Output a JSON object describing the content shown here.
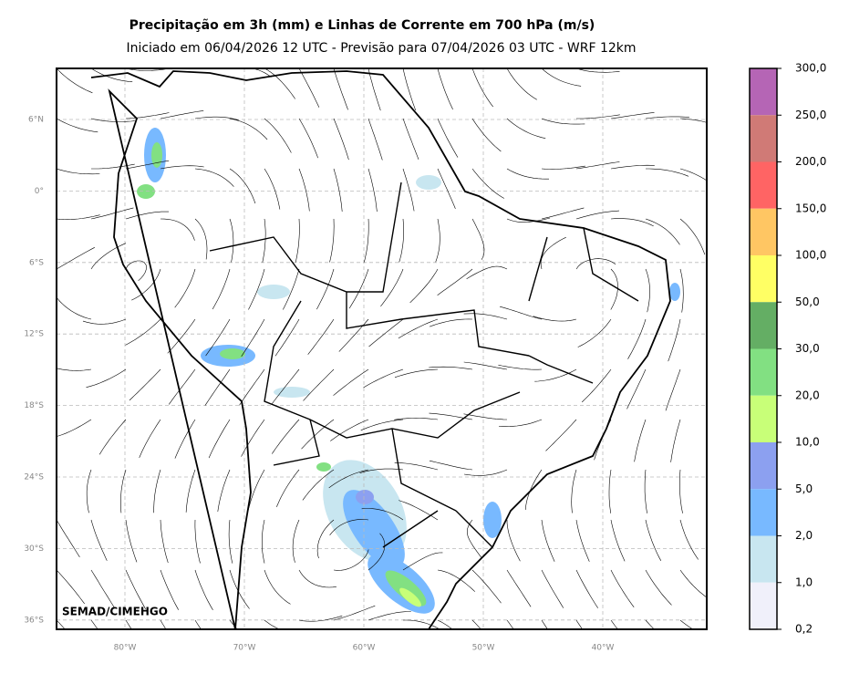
{
  "header": {
    "title": "Precipitação em 3h (mm) e Linhas de Corrente em 700 hPa (m/s)",
    "subtitle": "Iniciado em 06/04/2026 12 UTC - Previsão para 07/04/2026 03 UTC - WRF 12km"
  },
  "map": {
    "lat_labels": [
      "6°N",
      "0°",
      "6°S",
      "12°S",
      "18°S",
      "24°S",
      "30°S",
      "36°S"
    ],
    "lon_labels": [
      "80°W",
      "70°W",
      "60°W",
      "50°W",
      "40°W"
    ],
    "credit": "SEMAD/CIMEHGO"
  },
  "colorbar": {
    "labels": [
      "300,0",
      "250,0",
      "200,0",
      "150,0",
      "100,0",
      "50,0",
      "30,0",
      "20,0",
      "10,0",
      "5,0",
      "2,0",
      "1,0",
      "0,2"
    ],
    "colors": [
      "#b565b5",
      "#d07a76",
      "#ff6464",
      "#ffc663",
      "#ffff64",
      "#64ae64",
      "#82e082",
      "#c8ff78",
      "#8ca0f0",
      "#78b9ff",
      "#c8e6f0",
      "#f0f0fa"
    ]
  }
}
